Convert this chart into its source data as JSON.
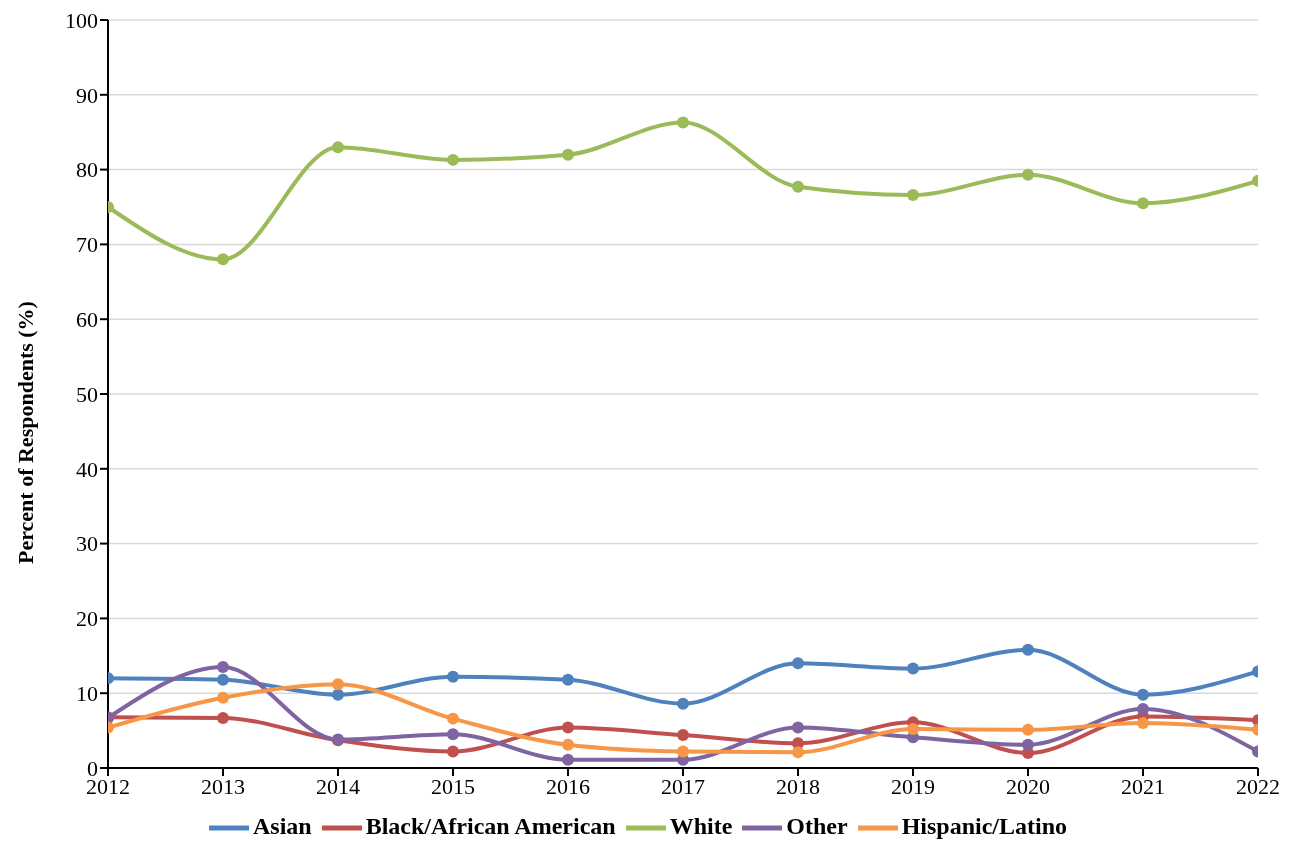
{
  "chart_data": {
    "type": "line",
    "ylabel": "Percent of Respondents (%)",
    "categories": [
      "2012",
      "2013",
      "2014",
      "2015",
      "2016",
      "2017",
      "2018",
      "2019",
      "2020",
      "2021",
      "2022"
    ],
    "series": [
      {
        "name": "Asian",
        "color": "#4f81bd",
        "values": [
          12.0,
          11.8,
          9.8,
          12.2,
          11.8,
          8.6,
          14.0,
          13.3,
          15.8,
          9.8,
          12.9
        ]
      },
      {
        "name": "Black/African American",
        "color": "#c0504d",
        "values": [
          6.8,
          6.7,
          3.7,
          2.2,
          5.4,
          4.4,
          3.3,
          6.1,
          2.0,
          6.9,
          6.4
        ]
      },
      {
        "name": "White",
        "color": "#9bbb59",
        "values": [
          75.0,
          68.0,
          83.0,
          81.3,
          82.0,
          86.3,
          77.7,
          76.6,
          79.3,
          75.5,
          78.5
        ]
      },
      {
        "name": "Other",
        "color": "#8064a2",
        "values": [
          6.7,
          13.5,
          3.8,
          4.5,
          1.1,
          1.1,
          5.4,
          4.1,
          3.1,
          7.9,
          2.2
        ]
      },
      {
        "name": "Hispanic/Latino",
        "color": "#f79646",
        "values": [
          5.4,
          9.4,
          11.2,
          6.6,
          3.1,
          2.2,
          2.1,
          5.2,
          5.1,
          6.0,
          5.1
        ]
      }
    ],
    "ylim": [
      0,
      100
    ],
    "yticks": [
      0,
      10,
      20,
      30,
      40,
      50,
      60,
      70,
      80,
      90,
      100
    ],
    "grid": "y",
    "legend": "bottom",
    "marker": "circle",
    "line_style": "solid"
  }
}
